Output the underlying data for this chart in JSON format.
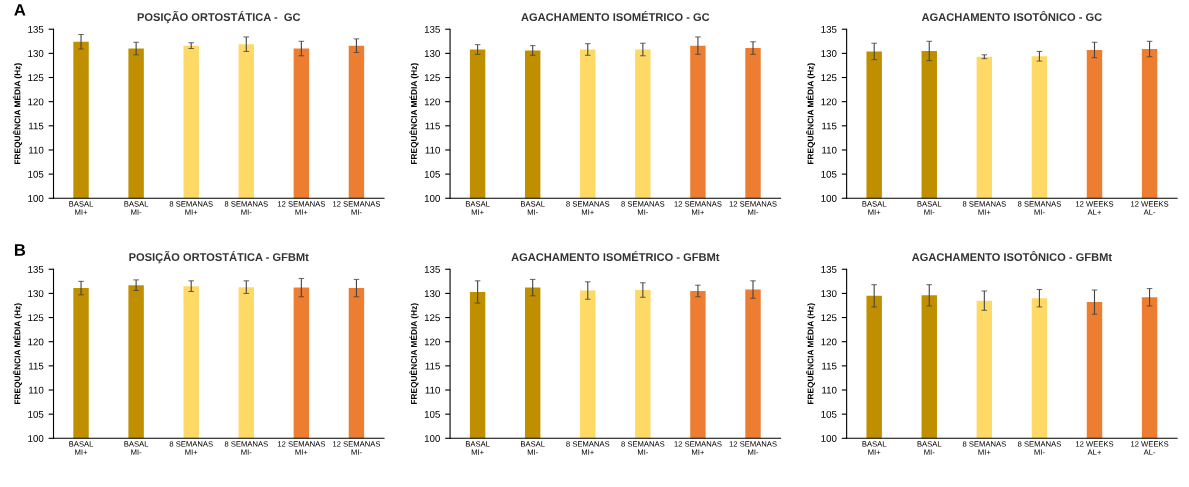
{
  "chart_data": [
    {
      "type": "bar",
      "title": "POSIÇÃO ORTOSTÁTICA -  GC",
      "ylabel": "FREQUÊNCIA MÉDIA (Hz)",
      "annotations": [
        "A"
      ],
      "categories": [
        "BASAL\nMI+",
        "BASAL\nMI-",
        "8 SEMANAS\nMI+",
        "8 SEMANAS\nMI-",
        "12 SEMANAS\nMI+",
        "12 SEMANAS\nMI-"
      ],
      "colors": [
        "#bf8f00",
        "#bf8f00",
        "#ffd966",
        "#ffd966",
        "#ed7d31",
        "#ed7d31"
      ],
      "values": [
        132.4,
        131.0,
        131.6,
        131.9,
        131.0,
        131.6
      ],
      "errors": [
        1.5,
        1.3,
        0.6,
        1.5,
        1.5,
        1.4
      ],
      "ylim": [
        100,
        135
      ],
      "yticks": [
        100,
        105,
        110,
        115,
        120,
        125,
        130,
        135
      ],
      "grid": false,
      "legend": false
    },
    {
      "type": "bar",
      "title": "AGACHAMENTO ISOMÉTRICO - GC",
      "ylabel": "FREQUÊNCIA MÉDIA (Hz)",
      "categories": [
        "BASAL\nMI+",
        "BASAL\nMI-",
        "8 SEMANAS\nMI+",
        "8 SEMANAS\nMI-",
        "12 SEMANAS\nMI+",
        "12 SEMANAS\nMI-"
      ],
      "colors": [
        "#bf8f00",
        "#bf8f00",
        "#ffd966",
        "#ffd966",
        "#ed7d31",
        "#ed7d31"
      ],
      "values": [
        130.8,
        130.6,
        130.8,
        130.8,
        131.6,
        131.1
      ],
      "errors": [
        1.0,
        1.0,
        1.2,
        1.3,
        1.8,
        1.3
      ],
      "ylim": [
        100,
        135
      ],
      "yticks": [
        100,
        105,
        110,
        115,
        120,
        125,
        130,
        135
      ],
      "grid": false,
      "legend": false
    },
    {
      "type": "bar",
      "title": "AGACHAMENTO ISOTÔNICO - GC",
      "ylabel": "FREQUÊNCIA MÉDIA (Hz)",
      "categories": [
        "BASAL\nMI+",
        "BASAL\nMI-",
        "8 SEMANAS\nMI+",
        "8 SEMANAS\nMI-",
        "12 WEEKS\nAL+",
        "12 WEEKS\nAL-"
      ],
      "colors": [
        "#bf8f00",
        "#bf8f00",
        "#ffd966",
        "#ffd966",
        "#ed7d31",
        "#ed7d31"
      ],
      "values": [
        130.4,
        130.5,
        129.3,
        129.4,
        130.7,
        130.9
      ],
      "errors": [
        1.7,
        2.0,
        0.4,
        1.0,
        1.6,
        1.6
      ],
      "ylim": [
        100,
        135
      ],
      "yticks": [
        100,
        105,
        110,
        115,
        120,
        125,
        130,
        135
      ],
      "grid": false,
      "legend": false
    },
    {
      "type": "bar",
      "title": "POSIÇÃO ORTOSTÁTICA - GFBMt",
      "ylabel": "FREQUÊNCIA MÉDIA (Hz)",
      "annotations": [
        "B"
      ],
      "categories": [
        "BASAL\nMI+",
        "BASAL\nMI-",
        "8 SEMANAS\nMI+",
        "8 SEMANAS\nMI-",
        "12 SEMANAS\nMI+",
        "12 SEMANAS\nMI-"
      ],
      "colors": [
        "#bf8f00",
        "#bf8f00",
        "#ffd966",
        "#ffd966",
        "#ed7d31",
        "#ed7d31"
      ],
      "values": [
        131.1,
        131.7,
        131.5,
        131.3,
        131.2,
        131.1
      ],
      "errors": [
        1.4,
        1.1,
        1.1,
        1.3,
        1.9,
        1.8
      ],
      "ylim": [
        100,
        135
      ],
      "yticks": [
        100,
        105,
        110,
        115,
        120,
        125,
        130,
        135
      ],
      "grid": false,
      "legend": false
    },
    {
      "type": "bar",
      "title": "AGACHAMENTO ISOMÉTRICO - GFBMt",
      "ylabel": "FREQUÊNCIA MÉDIA (Hz)",
      "categories": [
        "BASAL\nMI+",
        "BASAL\nMI-",
        "8 SEMANAS\nMI+",
        "8 SEMANAS\nMI-",
        "12 SEMANAS\nMI+",
        "12 SEMANAS\nMI-"
      ],
      "colors": [
        "#bf8f00",
        "#bf8f00",
        "#ffd966",
        "#ffd966",
        "#ed7d31",
        "#ed7d31"
      ],
      "values": [
        130.3,
        131.2,
        130.6,
        130.7,
        130.5,
        130.8
      ],
      "errors": [
        2.3,
        1.7,
        1.8,
        1.5,
        1.2,
        1.8
      ],
      "ylim": [
        100,
        135
      ],
      "yticks": [
        100,
        105,
        110,
        115,
        120,
        125,
        130,
        135
      ],
      "grid": false,
      "legend": false
    },
    {
      "type": "bar",
      "title": "AGACHAMENTO ISOTÔNICO - GFBMt",
      "ylabel": "FREQUÊNCIA MÉDIA (Hz)",
      "categories": [
        "BASAL\nMI+",
        "BASAL\nMI-",
        "8 SEMANAS\nMI+",
        "8 SEMANAS\nMI-",
        "12 WEEKS\nAL+",
        "12 WEEKS\nAL-"
      ],
      "colors": [
        "#bf8f00",
        "#bf8f00",
        "#ffd966",
        "#ffd966",
        "#ed7d31",
        "#ed7d31"
      ],
      "values": [
        129.5,
        129.6,
        128.5,
        129.0,
        128.2,
        129.2
      ],
      "errors": [
        2.3,
        2.2,
        2.0,
        1.8,
        2.5,
        1.8
      ],
      "ylim": [
        100,
        135
      ],
      "yticks": [
        100,
        105,
        110,
        115,
        120,
        125,
        130,
        135
      ],
      "grid": false,
      "legend": false
    }
  ]
}
